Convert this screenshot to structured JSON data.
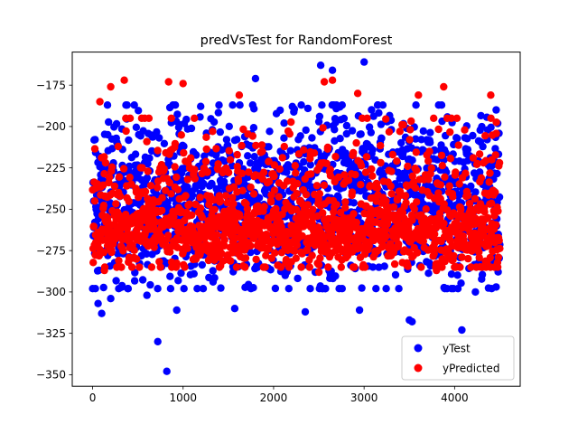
{
  "chart_data": {
    "type": "scatter",
    "title": "predVsTest for RandomForest",
    "xlabel": "",
    "ylabel": "",
    "xlim": [
      -225,
      4725
    ],
    "ylim": [
      -357,
      -155
    ],
    "x_ticks": [
      0,
      1000,
      2000,
      3000,
      4000
    ],
    "x_tick_labels": [
      "0",
      "1000",
      "2000",
      "3000",
      "4000"
    ],
    "y_ticks": [
      -175,
      -200,
      -225,
      -250,
      -275,
      -300,
      -325,
      -350
    ],
    "y_tick_labels": [
      "−175",
      "−200",
      "−225",
      "−250",
      "−275",
      "−300",
      "−325",
      "−350"
    ],
    "grid": false,
    "legend_position": "lower-right",
    "n_points": 4500,
    "series": [
      {
        "name": "yTest",
        "color": "#0000ff",
        "typical_range": [
          -290,
          -195
        ],
        "extremes": [
          {
            "x": 2520,
            "y": -163
          },
          {
            "x": 3000,
            "y": -161
          },
          {
            "x": 2650,
            "y": -166
          },
          {
            "x": 1800,
            "y": -171
          },
          {
            "x": 720,
            "y": -330
          },
          {
            "x": 820,
            "y": -348
          },
          {
            "x": 4080,
            "y": -323
          },
          {
            "x": 3500,
            "y": -317
          },
          {
            "x": 3530,
            "y": -318
          },
          {
            "x": 60,
            "y": -307
          },
          {
            "x": 100,
            "y": -313
          },
          {
            "x": 2350,
            "y": -312
          },
          {
            "x": 2950,
            "y": -311
          },
          {
            "x": 930,
            "y": -311
          },
          {
            "x": 1570,
            "y": -310
          },
          {
            "x": 200,
            "y": -304
          },
          {
            "x": 600,
            "y": -302
          },
          {
            "x": 4230,
            "y": -300
          },
          {
            "x": 4460,
            "y": -297
          }
        ]
      },
      {
        "name": "yPredicted",
        "color": "#ff0000",
        "typical_range": [
          -285,
          -195
        ],
        "extremes": [
          {
            "x": 350,
            "y": -172
          },
          {
            "x": 840,
            "y": -173
          },
          {
            "x": 2560,
            "y": -173
          },
          {
            "x": 2650,
            "y": -172
          },
          {
            "x": 1000,
            "y": -174
          },
          {
            "x": 3880,
            "y": -176
          },
          {
            "x": 200,
            "y": -176
          },
          {
            "x": 4400,
            "y": -181
          },
          {
            "x": 3600,
            "y": -181
          },
          {
            "x": 1620,
            "y": -181
          },
          {
            "x": 2930,
            "y": -180
          },
          {
            "x": 80,
            "y": -185
          },
          {
            "x": 130,
            "y": -287
          },
          {
            "x": 2500,
            "y": -288
          },
          {
            "x": 3800,
            "y": -287
          }
        ]
      }
    ]
  }
}
